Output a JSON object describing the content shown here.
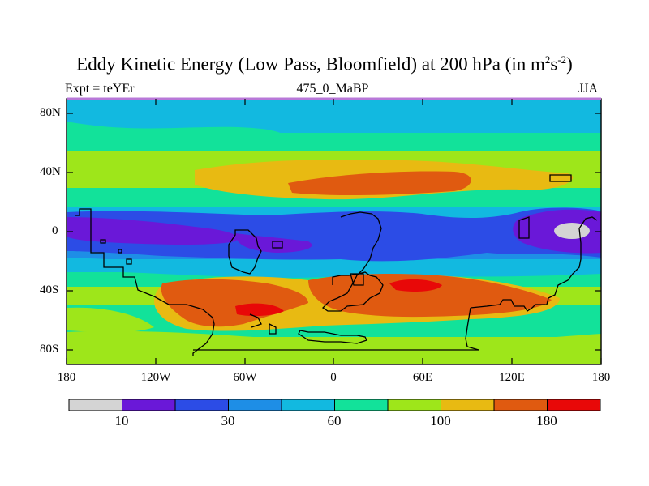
{
  "title": {
    "main": "Eddy Kinetic Energy (Low Pass, Bloomfield) at 200 hPa (in m",
    "sup1": "2",
    "mid": "s",
    "sup2": "-2",
    "close": ")"
  },
  "subtitle_left": "Expt = teYEr",
  "subtitle_center": "475_0_MaBP",
  "subtitle_right": "JJA",
  "chart_data": {
    "type": "heatmap",
    "title": "Eddy Kinetic Energy (Low Pass, Bloomfield) at 200 hPa (in m^2 s^-2)",
    "x_ticks": [
      "180",
      "120W",
      "60W",
      "0",
      "60E",
      "120E",
      "180"
    ],
    "y_ticks": [
      "80N",
      "40N",
      "0",
      "40S",
      "80S"
    ],
    "xlim": [
      -180,
      180
    ],
    "ylim": [
      -90,
      90
    ],
    "colorbar": {
      "levels": [
        10,
        20,
        30,
        45,
        60,
        80,
        100,
        140,
        180,
        220
      ],
      "tick_labels": [
        "10",
        "30",
        "60",
        "100",
        "180"
      ],
      "colors": [
        "#d4d4d4",
        "#6a18d8",
        "#2c4ce6",
        "#1e8ee6",
        "#12b9e0",
        "#12e29a",
        "#9ee61a",
        "#e8ba12",
        "#e05a10",
        "#e80808"
      ]
    },
    "features": [
      {
        "region": "tropics 10N-10S, 180-60W and 160E-180",
        "level": "10-20"
      },
      {
        "region": "near 160E at equator",
        "level": "<10"
      },
      {
        "region": "25N-40N, 20E-120E",
        "level": "140-180"
      },
      {
        "region": "30S-55S, 90W-120E",
        "level": "140-180"
      },
      {
        "region": "around 45S-55S, 60W-30W and 40S, 40E-70E",
        "level": ">180"
      },
      {
        "region": "high latitudes 60N-90N",
        "level": "45-80"
      }
    ]
  }
}
